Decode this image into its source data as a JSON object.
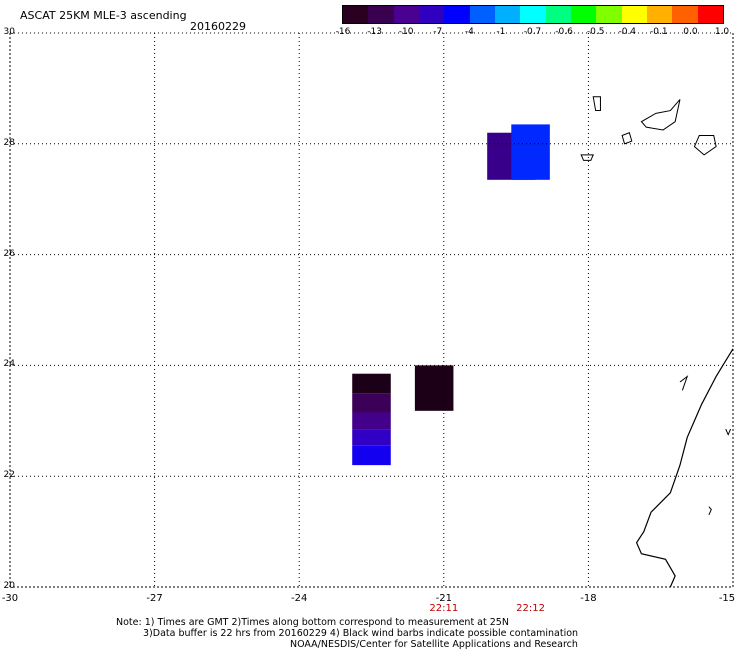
{
  "header": {
    "title": "ASCAT 25KM MLE-3 ascending",
    "date": "20160229"
  },
  "colorbar": {
    "colors": [
      "#2a0020",
      "#3a0050",
      "#4a0090",
      "#3000c0",
      "#0000ff",
      "#0060ff",
      "#00b0ff",
      "#00ffff",
      "#00ff80",
      "#00ff00",
      "#80ff00",
      "#ffff00",
      "#ffb000",
      "#ff6000",
      "#ff0000"
    ],
    "labels": [
      "-16",
      "-13",
      "-10",
      "-7",
      "-4",
      "-1",
      "-0.7",
      "-0.6",
      "-0.5",
      "-0.4",
      "-0.1",
      "0.0",
      "1.0"
    ]
  },
  "axes": {
    "lon_labels": [
      "-30",
      "-27",
      "-24",
      "-21",
      "-18",
      "-15"
    ],
    "lat_labels": [
      "30",
      "28",
      "26",
      "24",
      "22",
      "20"
    ],
    "lon_range": [
      -30,
      -15
    ],
    "lat_range": [
      20,
      30
    ]
  },
  "times": [
    {
      "label": "22:11",
      "lon": -21
    },
    {
      "label": "22:12",
      "lon": -19.2
    }
  ],
  "swaths": [
    {
      "lon0": -22.9,
      "lon1": -22.1,
      "lat0": 23.5,
      "lat1": 23.85,
      "color": "#1c0018"
    },
    {
      "lon0": -22.9,
      "lon1": -22.1,
      "lat0": 23.15,
      "lat1": 23.5,
      "color": "#3d0058"
    },
    {
      "lon0": -22.9,
      "lon1": -22.1,
      "lat0": 22.85,
      "lat1": 23.15,
      "color": "#43008a"
    },
    {
      "lon0": -22.9,
      "lon1": -22.1,
      "lat0": 22.55,
      "lat1": 22.85,
      "color": "#3000c4"
    },
    {
      "lon0": -22.9,
      "lon1": -22.1,
      "lat0": 22.2,
      "lat1": 22.55,
      "color": "#1400f0"
    },
    {
      "lon0": -21.6,
      "lon1": -20.8,
      "lat0": 23.18,
      "lat1": 24.0,
      "color": "#1c0018"
    },
    {
      "lon0": -20.1,
      "lon1": -19.1,
      "lat0": 27.35,
      "lat1": 28.2,
      "color": "#38008a"
    },
    {
      "lon0": -19.6,
      "lon1": -18.8,
      "lat0": 27.35,
      "lat1": 28.35,
      "color": "#0028ff"
    }
  ],
  "notes": [
    "Note: 1) Times are GMT 2)Times along bottom correspond to measurement at 25N",
    "3)Data buffer is 22 hrs from 20160229 4) Black wind barbs indicate possible contamination",
    "NOAA/NESDIS/Center for Satellite Applications and Research"
  ]
}
